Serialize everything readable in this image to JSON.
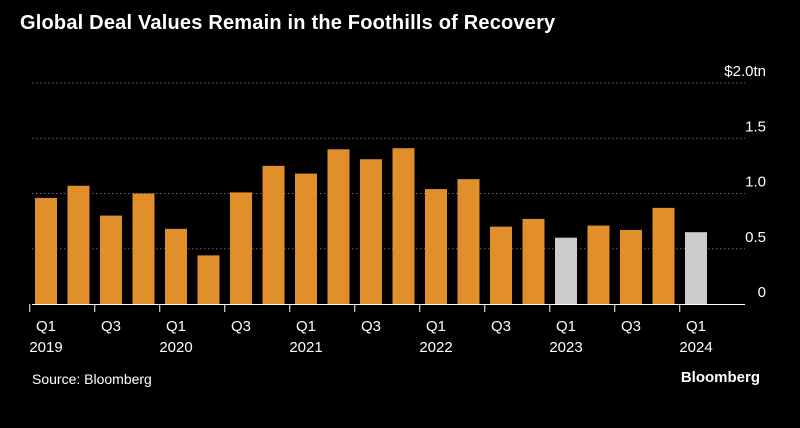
{
  "title": "Global Deal Values Remain in the Foothills of Recovery",
  "source": "Source: Bloomberg",
  "brand": "Bloomberg",
  "colors": {
    "background": "#000000",
    "primary": "#e08f2a",
    "highlight": "#cccccc",
    "grid": "#666666",
    "text": "#ffffff"
  },
  "chart_data": {
    "type": "bar",
    "ylabel": "",
    "xlabel": "",
    "ylim": [
      0,
      2.0
    ],
    "yticks": [
      {
        "value": 0,
        "label": "0"
      },
      {
        "value": 0.5,
        "label": "0.5"
      },
      {
        "value": 1.0,
        "label": "1.0"
      },
      {
        "value": 1.5,
        "label": "1.5"
      },
      {
        "value": 2.0,
        "label": "$2.0tn"
      }
    ],
    "grid": true,
    "categories": [
      "Q1 2019",
      "Q2 2019",
      "Q3 2019",
      "Q4 2019",
      "Q1 2020",
      "Q2 2020",
      "Q3 2020",
      "Q4 2020",
      "Q1 2021",
      "Q2 2021",
      "Q3 2021",
      "Q4 2021",
      "Q1 2022",
      "Q2 2022",
      "Q3 2022",
      "Q4 2022",
      "Q1 2023",
      "Q2 2023",
      "Q3 2023",
      "Q4 2023",
      "Q1 2024"
    ],
    "values": [
      0.96,
      1.07,
      0.8,
      1.0,
      0.68,
      0.44,
      1.01,
      1.25,
      1.18,
      1.4,
      1.31,
      1.41,
      1.04,
      1.13,
      0.7,
      0.77,
      0.6,
      0.71,
      0.67,
      0.87,
      0.65
    ],
    "highlighted": [
      false,
      false,
      false,
      false,
      false,
      false,
      false,
      false,
      false,
      false,
      false,
      false,
      false,
      false,
      false,
      false,
      true,
      false,
      false,
      false,
      true
    ],
    "xtick_labels": [
      {
        "index": 0,
        "quarter": "Q1",
        "year": "2019"
      },
      {
        "index": 2,
        "quarter": "Q3",
        "year": ""
      },
      {
        "index": 4,
        "quarter": "Q1",
        "year": "2020"
      },
      {
        "index": 6,
        "quarter": "Q3",
        "year": ""
      },
      {
        "index": 8,
        "quarter": "Q1",
        "year": "2021"
      },
      {
        "index": 10,
        "quarter": "Q3",
        "year": ""
      },
      {
        "index": 12,
        "quarter": "Q1",
        "year": "2022"
      },
      {
        "index": 14,
        "quarter": "Q3",
        "year": ""
      },
      {
        "index": 16,
        "quarter": "Q1",
        "year": "2023"
      },
      {
        "index": 18,
        "quarter": "Q3",
        "year": ""
      },
      {
        "index": 20,
        "quarter": "Q1",
        "year": "2024"
      }
    ]
  }
}
